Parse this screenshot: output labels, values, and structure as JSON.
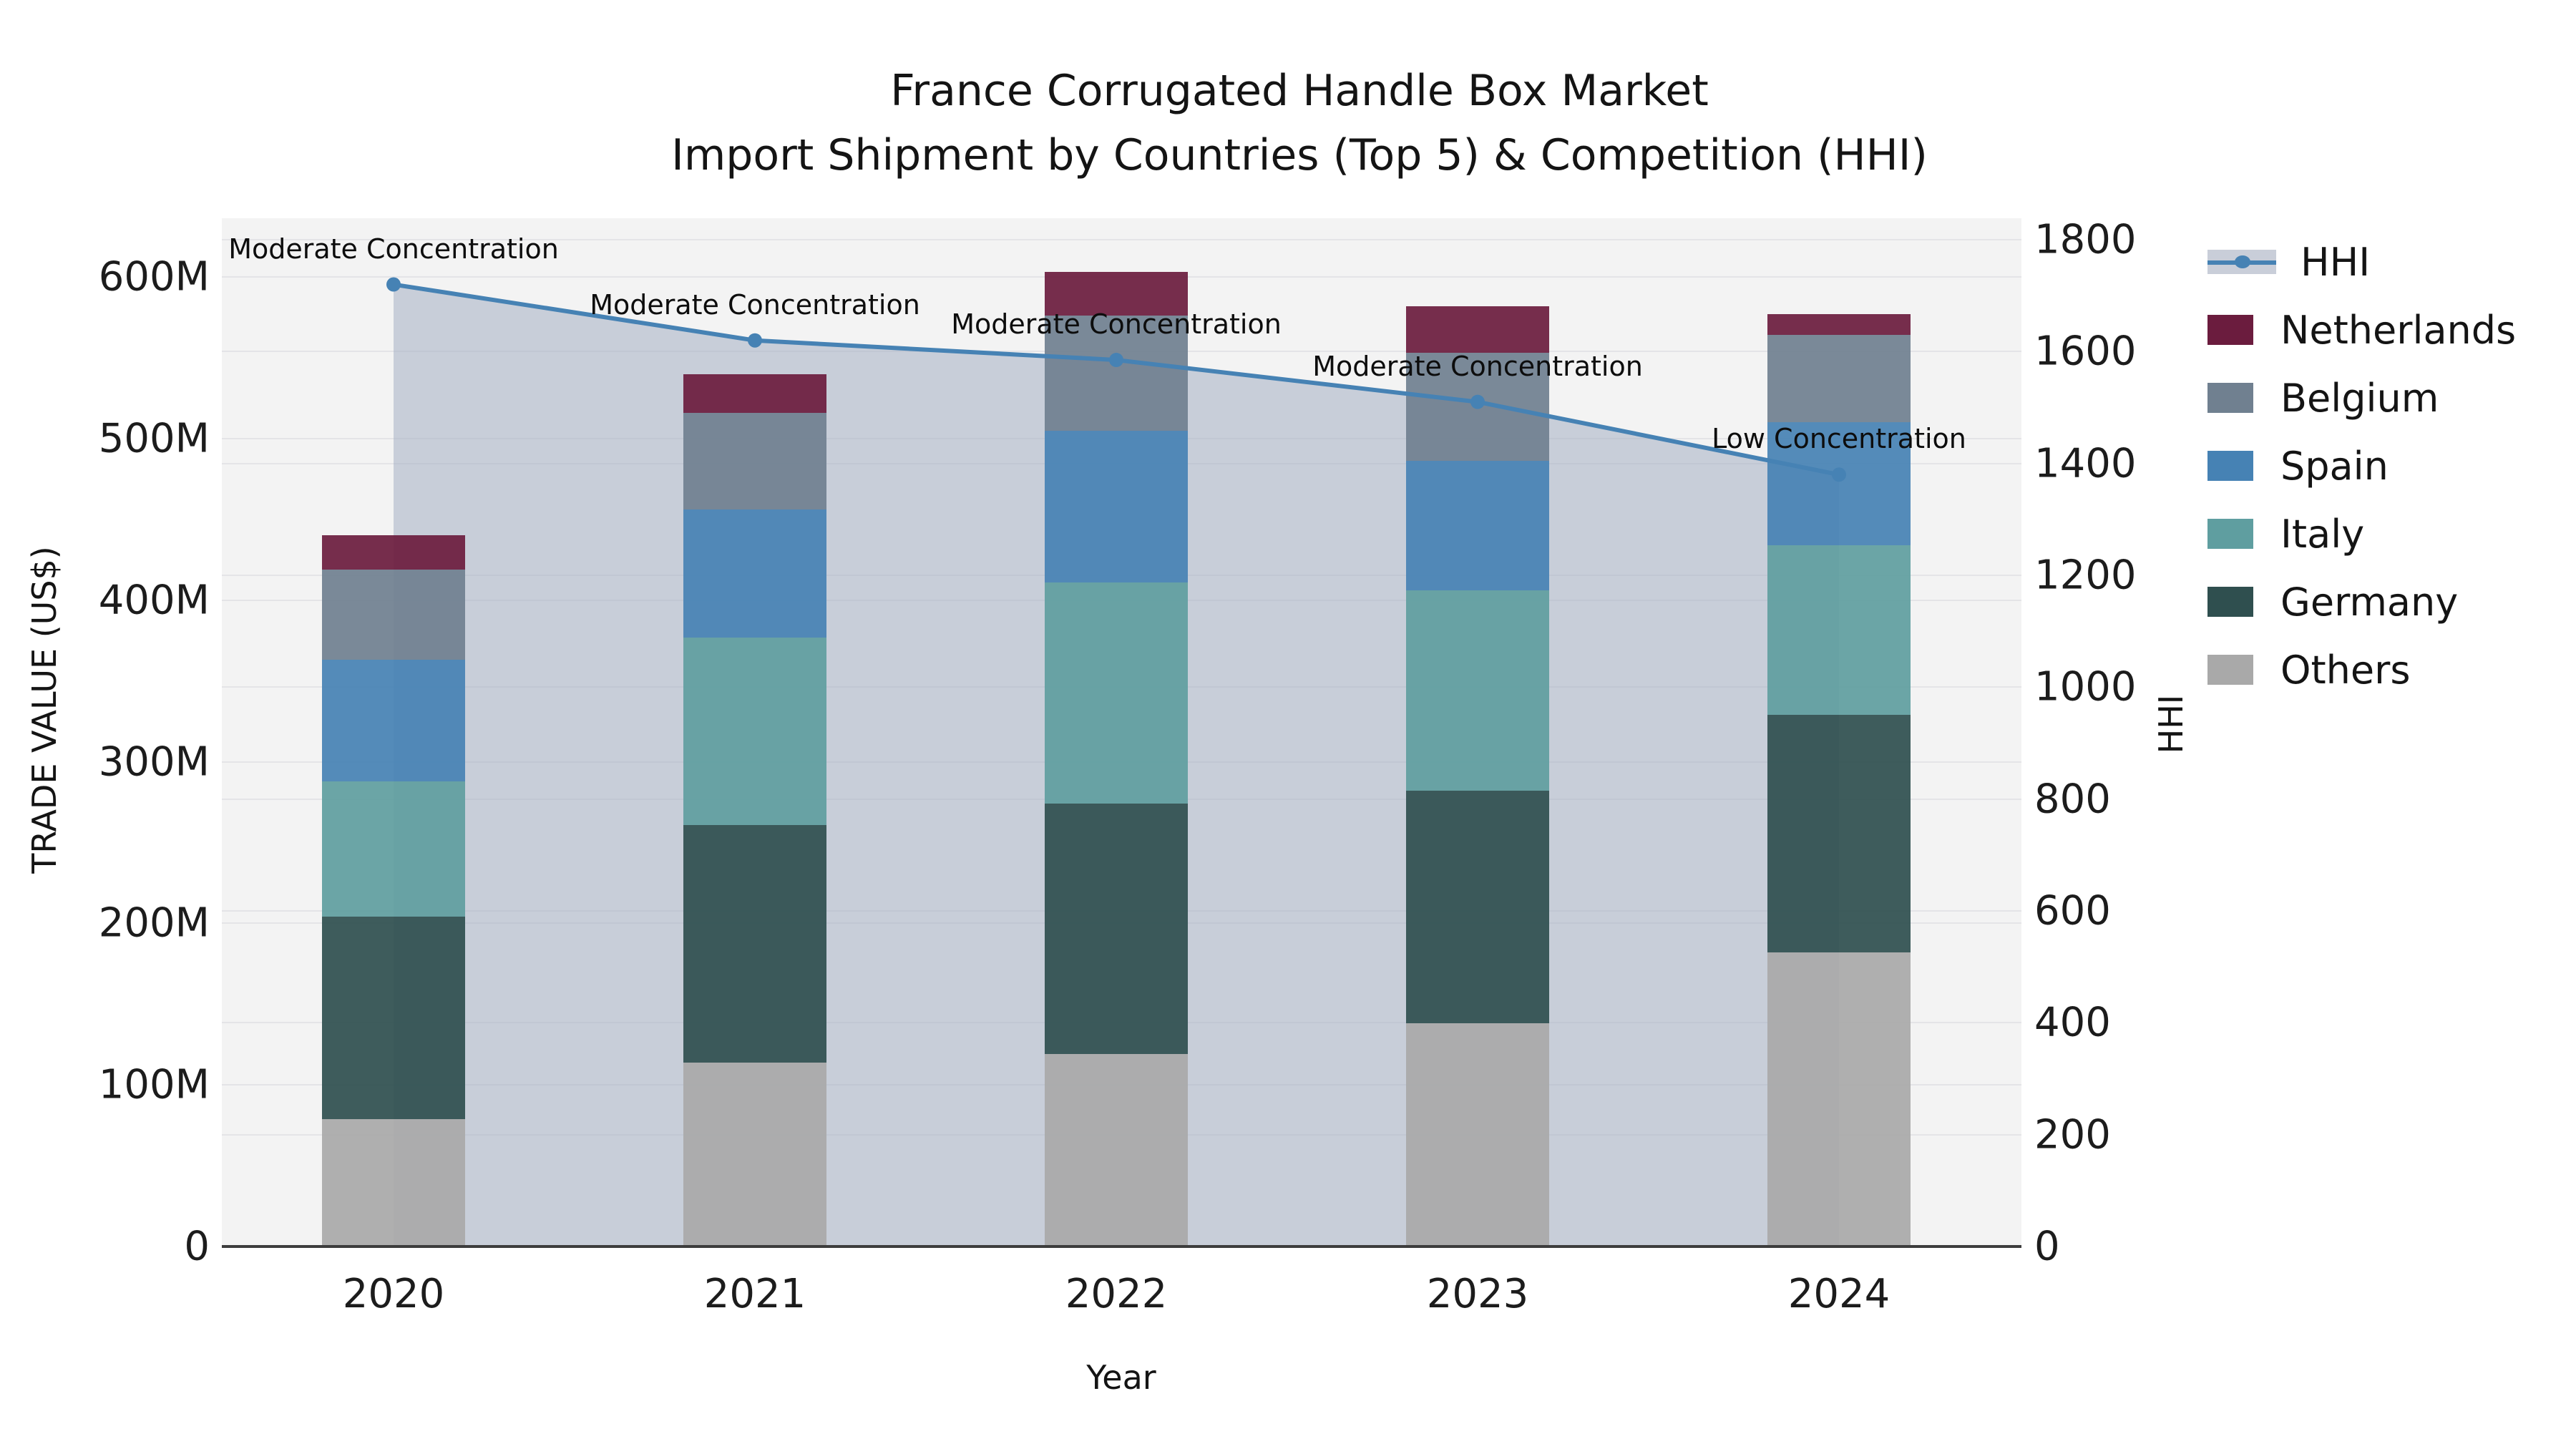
{
  "title": {
    "line1": "France Corrugated Handle Box Market",
    "line2": "Import Shipment by Countries (Top 5) & Competition (HHI)"
  },
  "axes": {
    "x_label": "Year",
    "left_label": "TRADE VALUE (US$)",
    "right_label": "HHI",
    "left_ticks": [
      "0",
      "100M",
      "200M",
      "300M",
      "400M",
      "500M",
      "600M"
    ],
    "right_ticks": [
      "0",
      "200",
      "400",
      "600",
      "800",
      "1000",
      "1200",
      "1400",
      "1600",
      "1800"
    ]
  },
  "legend": {
    "items": [
      {
        "label": "HHI",
        "type": "line",
        "color": "#4682b4"
      },
      {
        "label": "Netherlands",
        "type": "swatch",
        "color": "#6b1c3e"
      },
      {
        "label": "Belgium",
        "type": "swatch",
        "color": "#708090"
      },
      {
        "label": "Spain",
        "type": "swatch",
        "color": "#4682b4"
      },
      {
        "label": "Italy",
        "type": "swatch",
        "color": "#5f9ea0"
      },
      {
        "label": "Germany",
        "type": "swatch",
        "color": "#2f4f4f"
      },
      {
        "label": "Others",
        "type": "swatch",
        "color": "#a9a9a9"
      }
    ]
  },
  "chart_data": {
    "type": "combo: stacked bar (trade value) + line with area (HHI)",
    "title": "France Corrugated Handle Box Market — Import Shipment by Countries (Top 5) & Competition (HHI)",
    "categories": [
      "2020",
      "2021",
      "2022",
      "2023",
      "2024"
    ],
    "unit": "US$ millions",
    "series": [
      {
        "name": "Netherlands",
        "color": "#6b1c3e",
        "values": [
          21,
          24,
          27,
          29,
          13
        ]
      },
      {
        "name": "Belgium",
        "color": "#708090",
        "values": [
          56,
          60,
          71,
          67,
          54
        ]
      },
      {
        "name": "Spain",
        "color": "#4682b4",
        "values": [
          75,
          79,
          94,
          80,
          76
        ]
      },
      {
        "name": "Italy",
        "color": "#5f9ea0",
        "values": [
          84,
          116,
          137,
          124,
          105
        ]
      },
      {
        "name": "Germany",
        "color": "#2f4f4f",
        "values": [
          125,
          147,
          155,
          144,
          147
        ]
      },
      {
        "name": "Others",
        "color": "#a9a9a9",
        "values": [
          79,
          114,
          119,
          138,
          182
        ]
      }
    ],
    "stack_totals": [
      440,
      540,
      603,
      582,
      577
    ],
    "line_series": {
      "name": "HHI",
      "color": "#4682b4",
      "area_fill": "rgba(164,174,194,0.55)",
      "values": [
        1720,
        1620,
        1585,
        1510,
        1380
      ]
    },
    "annotations": [
      {
        "index": 0,
        "text": "Moderate Concentration"
      },
      {
        "index": 1,
        "text": "Moderate Concentration"
      },
      {
        "index": 2,
        "text": "Moderate Concentration"
      },
      {
        "index": 3,
        "text": "Moderate Concentration"
      },
      {
        "index": 4,
        "text": "Low Concentration"
      }
    ],
    "left_axis": {
      "label": "TRADE VALUE (US$)",
      "min": 0,
      "max": 600,
      "tick_step": 100,
      "tick_suffix": "M"
    },
    "right_axis": {
      "label": "HHI",
      "min": 0,
      "max": 1800,
      "tick_step": 200
    },
    "xlabel": "Year",
    "grid": true,
    "legend_position": "right"
  }
}
